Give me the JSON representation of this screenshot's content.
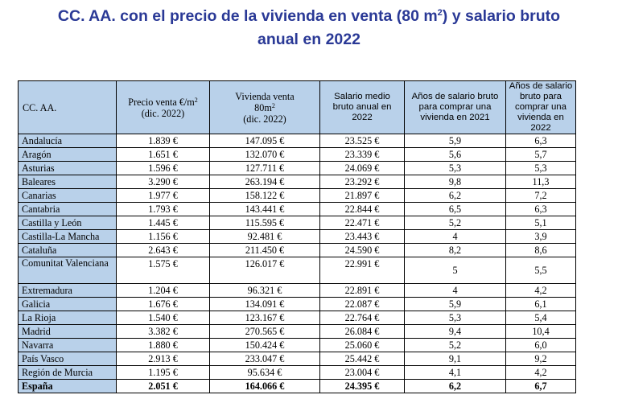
{
  "title": {
    "line1_pre": "CC. AA. con el precio de la vivienda en venta (80 m",
    "line1_sup": "2",
    "line1_post": ") y salario bruto",
    "line2": "anual en 2022"
  },
  "table": {
    "headers": {
      "ccaa": "CC. AA.",
      "precio_pre": "Precio venta €/m",
      "precio_sup": "2",
      "precio_post": "(dic. 2022)",
      "vivienda_l1": "Vivienda venta",
      "vivienda_l2_pre": "80m",
      "vivienda_l2_sup": "2",
      "vivienda_l3": "(dic. 2022)",
      "salario": "Salario medio bruto anual en 2022",
      "anos2021": "Años de salario bruto para comprar una vivienda en 2021",
      "anos2022": "Años de salario bruto para comprar una vivienda en 2022"
    },
    "rows": [
      {
        "ccaa": "Andalucía",
        "precio": "1.839 €",
        "vivienda": "147.095 €",
        "salario": "23.525 €",
        "a2021": "5,9",
        "a2022": "6,3"
      },
      {
        "ccaa": "Aragón",
        "precio": "1.651 €",
        "vivienda": "132.070 €",
        "salario": "23.339 €",
        "a2021": "5,6",
        "a2022": "5,7"
      },
      {
        "ccaa": "Asturias",
        "precio": "1.596 €",
        "vivienda": "127.711 €",
        "salario": "24.069 €",
        "a2021": "5,3",
        "a2022": "5,3"
      },
      {
        "ccaa": "Baleares",
        "precio": "3.290 €",
        "vivienda": "263.194 €",
        "salario": "23.292 €",
        "a2021": "9,8",
        "a2022": "11,3"
      },
      {
        "ccaa": "Canarias",
        "precio": "1.977 €",
        "vivienda": "158.122 €",
        "salario": "21.897 €",
        "a2021": "6,2",
        "a2022": "7,2"
      },
      {
        "ccaa": "Cantabria",
        "precio": "1.793 €",
        "vivienda": "143.441 €",
        "salario": "22.844 €",
        "a2021": "6,5",
        "a2022": "6,3"
      },
      {
        "ccaa": "Castilla y León",
        "precio": "1.445 €",
        "vivienda": "115.595 €",
        "salario": "22.471 €",
        "a2021": "5,2",
        "a2022": "5,1"
      },
      {
        "ccaa": "Castilla-La Mancha",
        "precio": "1.156 €",
        "vivienda": "92.481 €",
        "salario": "23.443 €",
        "a2021": "4",
        "a2022": "3,9"
      },
      {
        "ccaa": "Cataluña",
        "precio": "2.643 €",
        "vivienda": "211.450 €",
        "salario": "24.590 €",
        "a2021": "8,2",
        "a2022": "8,6"
      },
      {
        "ccaa": "Comunitat Valenciana",
        "precio": "1.575 €",
        "vivienda": "126.017 €",
        "salario": "22.991 €",
        "a2021": "5",
        "a2022": "5,5"
      },
      {
        "ccaa": "Extremadura",
        "precio": "1.204 €",
        "vivienda": "96.321 €",
        "salario": "22.891 €",
        "a2021": "4",
        "a2022": "4,2"
      },
      {
        "ccaa": "Galicia",
        "precio": "1.676 €",
        "vivienda": "134.091 €",
        "salario": "22.087 €",
        "a2021": "5,9",
        "a2022": "6,1"
      },
      {
        "ccaa": "La Rioja",
        "precio": "1.540 €",
        "vivienda": "123.167 €",
        "salario": "22.764 €",
        "a2021": "5,3",
        "a2022": "5,4"
      },
      {
        "ccaa": "Madrid",
        "precio": "3.382 €",
        "vivienda": "270.565 €",
        "salario": "26.084 €",
        "a2021": "9,4",
        "a2022": "10,4"
      },
      {
        "ccaa": "Navarra",
        "precio": "1.880 €",
        "vivienda": "150.424 €",
        "salario": "25.060 €",
        "a2021": "5,2",
        "a2022": "6,0"
      },
      {
        "ccaa": "País Vasco",
        "precio": "2.913 €",
        "vivienda": "233.047 €",
        "salario": "25.442 €",
        "a2021": "9,1",
        "a2022": "9,2"
      },
      {
        "ccaa": "Región de Murcia",
        "precio": "1.195 €",
        "vivienda": "95.634 €",
        "salario": "23.004 €",
        "a2021": "4,1",
        "a2022": "4,2"
      },
      {
        "ccaa": "España",
        "precio": "2.051 €",
        "vivienda": "164.066 €",
        "salario": "24.395 €",
        "a2021": "6,2",
        "a2022": "6,7"
      }
    ]
  },
  "colors": {
    "title": "#2a3996",
    "header_fill": "#b9d1ea"
  }
}
